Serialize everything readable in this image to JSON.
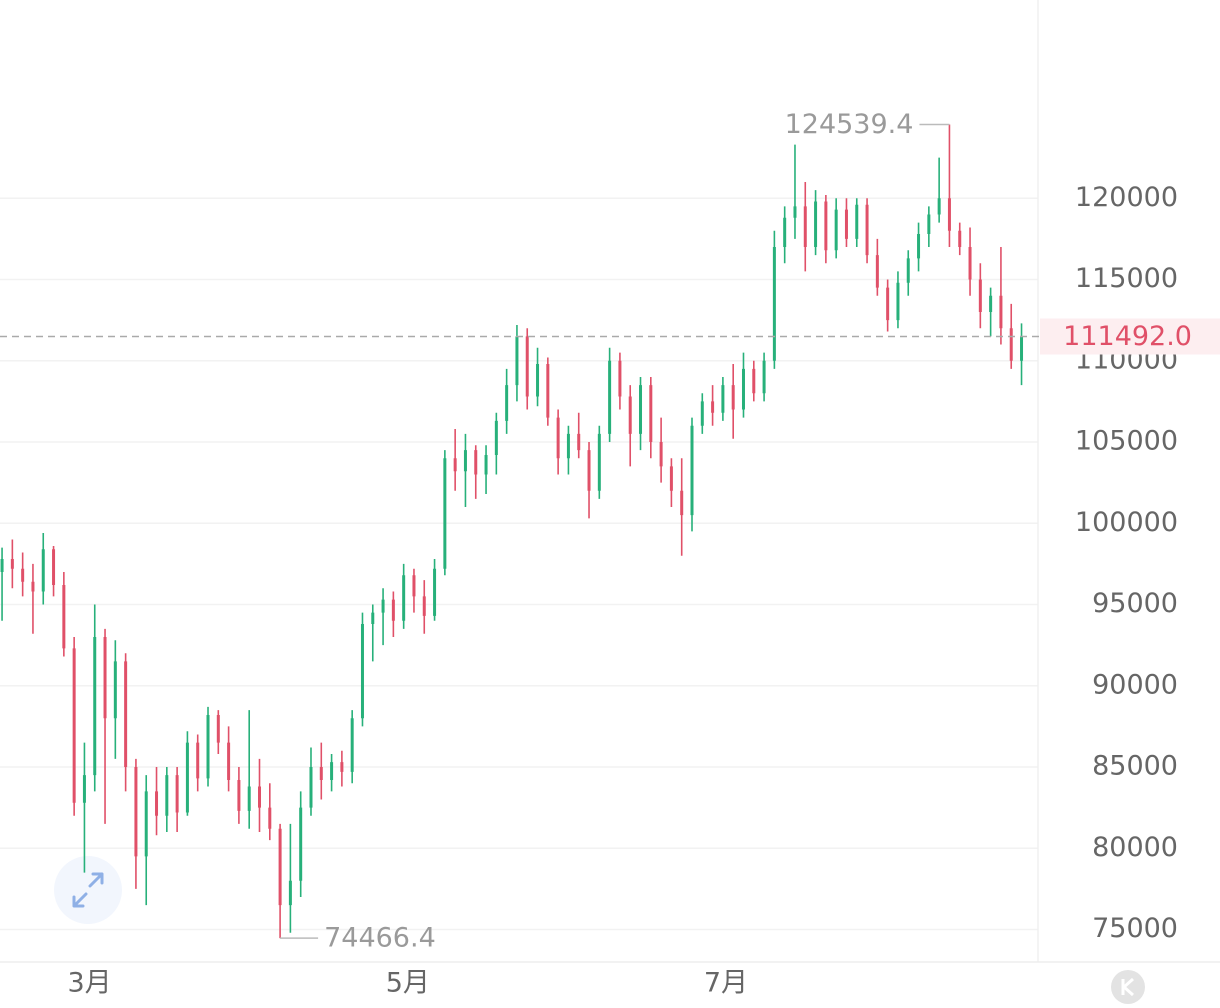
{
  "chart_data": {
    "type": "candlestick",
    "ylim": [
      73000,
      132200
    ],
    "yticks": [
      75000,
      80000,
      85000,
      90000,
      95000,
      100000,
      105000,
      110000,
      115000,
      120000
    ],
    "xlim": [
      -0.2,
      100.6
    ],
    "xticks": [
      {
        "value": 8.5,
        "label": "3月"
      },
      {
        "value": 39.4,
        "label": "5月"
      },
      {
        "value": 70.3,
        "label": "7月"
      }
    ],
    "grid": true,
    "up_color": "#27b07a",
    "down_color": "#e05068",
    "high_index": 92,
    "low_index": 27,
    "last_price_label": "111492.0",
    "ohlc": [
      [
        97000,
        98500,
        94000,
        97800
      ],
      [
        97800,
        99000,
        96000,
        97200
      ],
      [
        97200,
        98200,
        95500,
        96400
      ],
      [
        96400,
        97500,
        93200,
        95800
      ],
      [
        95800,
        99400,
        95000,
        98400
      ],
      [
        98400,
        98600,
        95500,
        96200
      ],
      [
        96200,
        97000,
        91800,
        92300
      ],
      [
        92300,
        93000,
        82000,
        82800
      ],
      [
        82800,
        86500,
        78500,
        84500
      ],
      [
        84500,
        95000,
        83500,
        93000
      ],
      [
        93000,
        93500,
        81500,
        88000
      ],
      [
        88000,
        92800,
        85500,
        91500
      ],
      [
        91500,
        92000,
        83500,
        85000
      ],
      [
        85000,
        85500,
        77500,
        79500
      ],
      [
        79500,
        84500,
        76500,
        83500
      ],
      [
        83500,
        85000,
        80800,
        82000
      ],
      [
        82000,
        85000,
        81000,
        84500
      ],
      [
        84500,
        85000,
        81000,
        82200
      ],
      [
        82200,
        87200,
        82000,
        86500
      ],
      [
        86500,
        87000,
        83500,
        84300
      ],
      [
        84300,
        88700,
        83800,
        88200
      ],
      [
        88200,
        88500,
        85800,
        86500
      ],
      [
        86500,
        87500,
        83500,
        84200
      ],
      [
        84200,
        85000,
        81500,
        82300
      ],
      [
        82300,
        88500,
        81200,
        83800
      ],
      [
        83800,
        85500,
        81000,
        82500
      ],
      [
        82500,
        84000,
        80500,
        81200
      ],
      [
        81200,
        81500,
        74466.4,
        76500
      ],
      [
        76500,
        81500,
        74800,
        78000
      ],
      [
        78000,
        83500,
        77000,
        82500
      ],
      [
        82500,
        86200,
        82000,
        85000
      ],
      [
        85000,
        86500,
        83000,
        84200
      ],
      [
        84200,
        85800,
        83500,
        85300
      ],
      [
        85300,
        86000,
        83800,
        84700
      ],
      [
        84700,
        88500,
        84000,
        88000
      ],
      [
        88000,
        94500,
        87500,
        93800
      ],
      [
        93800,
        95000,
        91500,
        94500
      ],
      [
        94500,
        96000,
        92500,
        95300
      ],
      [
        95300,
        95800,
        93000,
        94000
      ],
      [
        94000,
        97500,
        93500,
        96800
      ],
      [
        96800,
        97200,
        94500,
        95500
      ],
      [
        95500,
        96500,
        93200,
        94300
      ],
      [
        94300,
        97800,
        94000,
        97200
      ],
      [
        97200,
        104500,
        96800,
        104000
      ],
      [
        104000,
        105800,
        102000,
        103200
      ],
      [
        103200,
        105500,
        101000,
        104500
      ],
      [
        104500,
        104800,
        101500,
        103000
      ],
      [
        103000,
        104800,
        101800,
        104200
      ],
      [
        104200,
        106800,
        103000,
        106300
      ],
      [
        106300,
        109500,
        105500,
        108500
      ],
      [
        108500,
        112200,
        107500,
        111500
      ],
      [
        111500,
        112000,
        107000,
        107800
      ],
      [
        107800,
        110800,
        107200,
        109800
      ],
      [
        109800,
        110200,
        106000,
        106500
      ],
      [
        106500,
        107000,
        103000,
        104000
      ],
      [
        104000,
        106000,
        103000,
        105500
      ],
      [
        105500,
        106800,
        104000,
        104500
      ],
      [
        104500,
        105000,
        100300,
        102000
      ],
      [
        102000,
        106000,
        101500,
        105500
      ],
      [
        105500,
        110800,
        105000,
        110000
      ],
      [
        110000,
        110500,
        107000,
        107800
      ],
      [
        107800,
        108500,
        103500,
        105500
      ],
      [
        105500,
        109000,
        104500,
        108500
      ],
      [
        108500,
        109000,
        104000,
        105000
      ],
      [
        105000,
        106500,
        102500,
        103500
      ],
      [
        103500,
        104000,
        101000,
        102000
      ],
      [
        102000,
        104000,
        98000,
        100500
      ],
      [
        100500,
        106500,
        99500,
        106000
      ],
      [
        106000,
        108000,
        105500,
        107500
      ],
      [
        107500,
        108500,
        106000,
        106800
      ],
      [
        106800,
        109000,
        106300,
        108500
      ],
      [
        108500,
        109800,
        105200,
        107000
      ],
      [
        107000,
        110500,
        106500,
        109500
      ],
      [
        109500,
        110000,
        107500,
        108000
      ],
      [
        108000,
        110500,
        107500,
        110000
      ],
      [
        110000,
        118000,
        109500,
        117000
      ],
      [
        117000,
        119500,
        116000,
        118800
      ],
      [
        118800,
        123300,
        117500,
        119500
      ],
      [
        119500,
        121000,
        115500,
        117000
      ],
      [
        117000,
        120500,
        116500,
        119800
      ],
      [
        119800,
        120200,
        116000,
        116800
      ],
      [
        116800,
        120000,
        116300,
        119300
      ],
      [
        119300,
        120000,
        117000,
        117500
      ],
      [
        117500,
        120000,
        117000,
        119600
      ],
      [
        119600,
        120000,
        116000,
        116500
      ],
      [
        116500,
        117500,
        114000,
        114500
      ],
      [
        114500,
        115000,
        111800,
        112500
      ],
      [
        112500,
        115500,
        112000,
        114800
      ],
      [
        114800,
        116800,
        114000,
        116300
      ],
      [
        116300,
        118500,
        115500,
        117800
      ],
      [
        117800,
        119500,
        117000,
        119000
      ],
      [
        119000,
        122500,
        118500,
        120000
      ],
      [
        120000,
        124539.4,
        117000,
        118000
      ],
      [
        118000,
        118500,
        116500,
        117000
      ],
      [
        117000,
        118200,
        114000,
        115000
      ],
      [
        115000,
        116000,
        112000,
        113000
      ],
      [
        113000,
        114500,
        111500,
        114000
      ],
      [
        114000,
        117000,
        111000,
        112000
      ],
      [
        112000,
        113500,
        109500,
        110000
      ],
      [
        110000,
        112300,
        108500,
        111492
      ]
    ]
  }
}
